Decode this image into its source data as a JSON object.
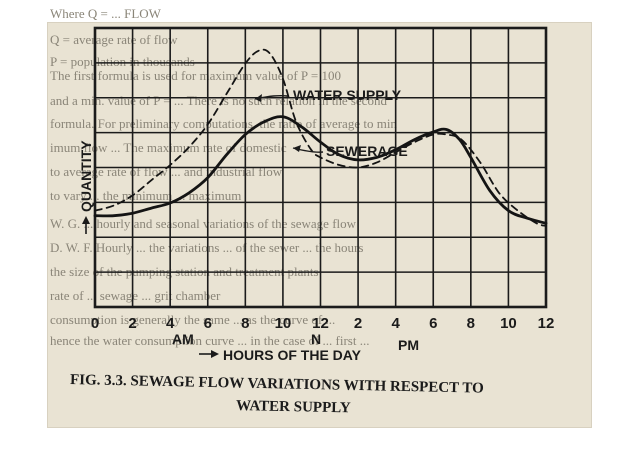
{
  "chart_data": {
    "type": "line",
    "title": "FIG. 3.3. SEWAGE FLOW VARIATIONS WITH RESPECT TO",
    "title_line2": "WATER SUPPLY",
    "xlabel": "HOURS OF THE DAY",
    "ylabel": "QUANTITY",
    "x_tick_labels": [
      "0",
      "2",
      "4",
      "6",
      "8",
      "10",
      "12",
      "2",
      "4",
      "6",
      "8",
      "10",
      "12"
    ],
    "x_period_labels": {
      "am": "AM",
      "noon": "N",
      "pm": "PM"
    },
    "x_hours": [
      0,
      2,
      4,
      6,
      8,
      10,
      12,
      14,
      16,
      18,
      20,
      22,
      24
    ],
    "xlim": [
      0,
      24
    ],
    "ylim": [
      0,
      11
    ],
    "grid": true,
    "series": [
      {
        "name": "WATER SUPPLY",
        "style": "dashed",
        "x": [
          0,
          1,
          2,
          3,
          4,
          5,
          6,
          7,
          8,
          8.7,
          9.3,
          10,
          10.7,
          11.5,
          12,
          13,
          14,
          15,
          16,
          17,
          18,
          18.7,
          19.5,
          20.5,
          21.5,
          22.5,
          23.5,
          24
        ],
        "y": [
          3.8,
          4.0,
          4.4,
          5.0,
          5.6,
          6.3,
          7.2,
          8.4,
          9.6,
          10.1,
          10.0,
          9.0,
          7.3,
          6.2,
          5.9,
          5.6,
          5.5,
          5.7,
          6.1,
          6.5,
          6.8,
          6.8,
          6.6,
          5.7,
          4.5,
          3.8,
          3.3,
          3.2
        ]
      },
      {
        "name": "SEWERAGE",
        "style": "solid",
        "x": [
          0,
          1,
          2,
          3,
          4,
          5,
          6,
          7,
          8,
          9,
          10,
          11,
          12,
          13,
          14,
          15,
          16,
          17,
          18,
          18.7,
          19.4,
          20,
          21,
          22,
          23,
          24
        ],
        "y": [
          3.6,
          3.6,
          3.7,
          3.9,
          4.1,
          4.5,
          5.1,
          6.0,
          6.8,
          7.3,
          7.5,
          7.1,
          6.5,
          6.0,
          5.8,
          5.9,
          6.2,
          6.6,
          6.9,
          7.0,
          6.6,
          5.9,
          4.6,
          3.8,
          3.5,
          3.3
        ]
      }
    ]
  },
  "background_text": [
    "Where Q = ... FLOW",
    "Q = average rate of flow",
    "P = population in thousands",
    "The first formula is used for maximum value of P = 100",
    "and a min. value of P = ... There is no such relation in the second",
    "formula. For preliminary computations, the ratio of average to min",
    "imum flow ... The maximum rate of domestic",
    "to average rate of flow ... and industrial flow",
    "to vary ... the minimum ... maximum",
    "W. G. ... hourly and seasonal variations of the sewage flow",
    "D. W. F. Hourly ... the variations ... of the sewer ... the hours",
    "the size of the pumping station and treatment plants",
    "rate of ... sewage ... grit chamber",
    "consumption is generally the same ... as the curve of ...",
    "hence the water consumption curve ... in the case of ... first ..."
  ]
}
